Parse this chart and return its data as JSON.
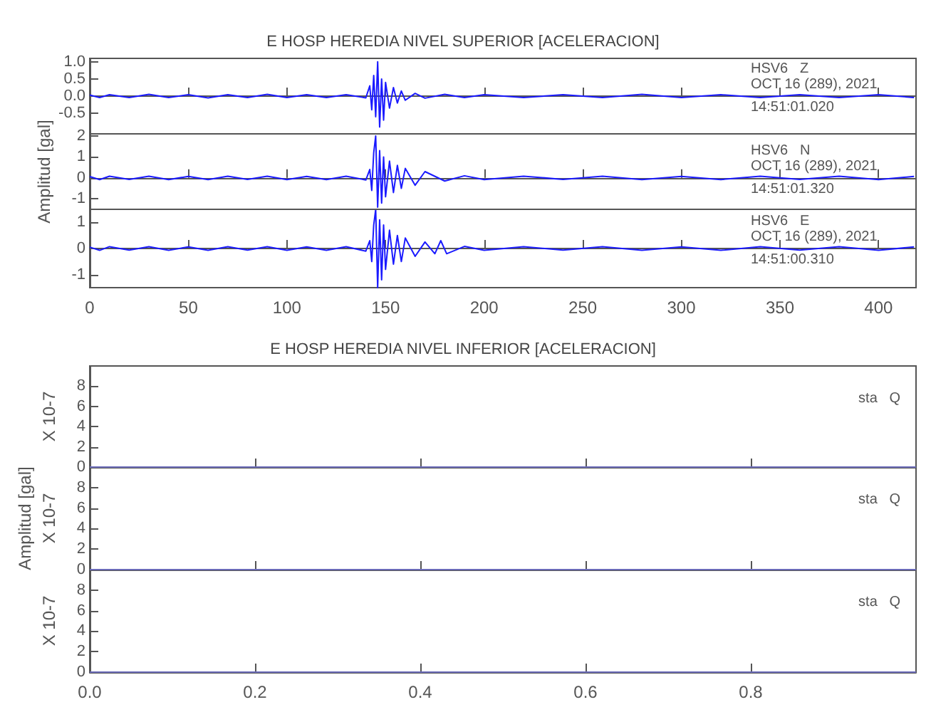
{
  "chart_data": [
    {
      "type": "line",
      "title": "E HOSP HEREDIA NIVEL SUPERIOR [ACELERACION]",
      "annotations": [
        "HSV6   Z",
        "OCT 16 (289), 2021",
        "14:51:01.020"
      ],
      "tick_labels": "y",
      "xlim": [
        0,
        419
      ],
      "xticks": [
        0,
        50,
        100,
        150,
        200,
        250,
        300,
        350,
        400
      ],
      "ylim": [
        -1.1,
        1.1
      ],
      "yticks": [
        {
          "value": 1,
          "label": "1.0"
        },
        {
          "value": 0.5,
          "label": "0.5"
        },
        {
          "value": 0,
          "label": "0.0"
        },
        {
          "value": -0.5,
          "label": "-0.5"
        }
      ],
      "x": [
        0,
        5,
        10,
        20,
        30,
        40,
        50,
        60,
        70,
        80,
        90,
        100,
        110,
        120,
        130,
        140,
        142,
        143,
        144,
        145,
        146,
        147,
        148,
        149,
        150,
        152,
        154,
        156,
        158,
        160,
        165,
        170,
        180,
        190,
        200,
        220,
        240,
        260,
        280,
        300,
        320,
        340,
        360,
        380,
        400,
        418
      ],
      "series": [
        {
          "color": "#1a1aff",
          "values": [
            0.03,
            -0.04,
            0.04,
            -0.04,
            0.05,
            -0.04,
            0.04,
            -0.05,
            0.04,
            -0.04,
            0.05,
            -0.04,
            0.04,
            -0.04,
            0.04,
            -0.05,
            0.3,
            -0.4,
            0.6,
            -0.6,
            1.0,
            -0.9,
            0.5,
            -0.7,
            0.4,
            -0.35,
            0.25,
            -0.2,
            0.15,
            -0.12,
            0.08,
            -0.06,
            0.05,
            -0.04,
            0.04,
            -0.04,
            0.04,
            -0.04,
            0.05,
            -0.04,
            0.04,
            -0.04,
            0.04,
            -0.04,
            0.04,
            -0.04
          ]
        }
      ]
    },
    {
      "type": "line",
      "ylabel": "Amplitud [gal]",
      "annotations": [
        "HSV6   N",
        "OCT 16 (289), 2021",
        "14:51:01.320"
      ],
      "tick_labels": "y",
      "xlim": [
        0,
        419
      ],
      "xticks": [
        0,
        50,
        100,
        150,
        200,
        250,
        300,
        350,
        400
      ],
      "ylim": [
        -1.5,
        2.1
      ],
      "yticks": [
        2,
        1,
        0,
        -1
      ],
      "x": [
        0,
        5,
        10,
        20,
        30,
        40,
        50,
        60,
        70,
        80,
        90,
        100,
        110,
        120,
        130,
        140,
        142,
        143,
        144,
        145,
        146,
        147,
        148,
        149,
        150,
        152,
        154,
        156,
        158,
        160,
        165,
        170,
        180,
        190,
        200,
        220,
        240,
        260,
        280,
        300,
        320,
        340,
        360,
        380,
        400,
        418
      ],
      "series": [
        {
          "color": "#1a1aff",
          "values": [
            0.06,
            -0.08,
            0.08,
            -0.07,
            0.08,
            -0.08,
            0.07,
            -0.08,
            0.08,
            -0.07,
            0.08,
            -0.08,
            0.07,
            -0.08,
            0.08,
            -0.1,
            0.4,
            -0.6,
            1.2,
            2.0,
            -1.4,
            1.3,
            -1.2,
            1.0,
            -0.9,
            0.8,
            -0.7,
            0.6,
            -0.5,
            0.45,
            -0.35,
            0.3,
            -0.15,
            0.1,
            -0.08,
            0.08,
            -0.07,
            0.08,
            -0.08,
            0.07,
            -0.08,
            0.08,
            -0.07,
            0.08,
            -0.08,
            0.07
          ]
        }
      ]
    },
    {
      "type": "line",
      "annotations": [
        "HSV6   E",
        "OCT 16 (289), 2021",
        "14:51:00.310"
      ],
      "xlim": [
        0,
        419
      ],
      "xticks": [
        0,
        50,
        100,
        150,
        200,
        250,
        300,
        350,
        400
      ],
      "ylim": [
        -1.5,
        1.5
      ],
      "yticks": [
        1,
        0,
        -1
      ],
      "x": [
        0,
        5,
        10,
        20,
        30,
        40,
        50,
        60,
        70,
        80,
        90,
        100,
        110,
        120,
        130,
        140,
        142,
        143,
        144,
        145,
        146,
        147,
        148,
        149,
        150,
        152,
        154,
        156,
        158,
        160,
        165,
        170,
        175,
        178,
        181,
        190,
        200,
        220,
        240,
        260,
        280,
        300,
        320,
        340,
        360,
        380,
        400,
        418
      ],
      "series": [
        {
          "color": "#1a1aff",
          "values": [
            0.05,
            -0.07,
            0.07,
            -0.06,
            0.07,
            -0.07,
            0.06,
            -0.07,
            0.07,
            -0.06,
            0.07,
            -0.07,
            0.06,
            -0.07,
            0.07,
            -0.1,
            0.3,
            -0.5,
            0.9,
            1.5,
            -1.5,
            1.1,
            -1.2,
            0.9,
            -0.8,
            0.7,
            -0.6,
            0.5,
            -0.5,
            0.4,
            -0.3,
            0.25,
            -0.2,
            0.3,
            -0.2,
            0.08,
            -0.07,
            0.07,
            -0.06,
            0.07,
            -0.07,
            0.06,
            -0.07,
            0.07,
            -0.06,
            0.07,
            -0.07,
            0.06
          ]
        }
      ]
    },
    {
      "type": "line",
      "title": "E HOSP HEREDIA NIVEL INFERIOR [ACELERACION]",
      "ylabel": "X 10-7",
      "annotations": [
        "sta   Q"
      ],
      "tick_labels": "y",
      "xlim": [
        0,
        1
      ],
      "xticks": [
        0.2,
        0.4,
        0.6,
        0.8
      ],
      "ylim": [
        0,
        10
      ],
      "yticks": [
        0,
        2,
        4,
        6,
        8
      ],
      "x": [
        0,
        1
      ],
      "series": [
        {
          "color": "#6b6bb8",
          "values": [
            0,
            0
          ]
        }
      ]
    },
    {
      "type": "line",
      "ylabel": "Amplitud [gal]\nX 10-7",
      "annotations": [
        "sta   Q"
      ],
      "tick_labels": "y",
      "xlim": [
        0,
        1
      ],
      "xticks": [
        0.2,
        0.4,
        0.6,
        0.8
      ],
      "ylim": [
        0,
        10
      ],
      "yticks": [
        0,
        2,
        4,
        6,
        8
      ],
      "x": [
        0,
        1
      ],
      "series": [
        {
          "color": "#6b6bb8",
          "values": [
            0,
            0
          ]
        }
      ]
    },
    {
      "type": "line",
      "ylabel": "X 10-7",
      "annotations": [
        "sta   Q"
      ],
      "xlim": [
        0,
        1
      ],
      "xticks": [
        {
          "value": 0,
          "label": "0.0"
        },
        0.2,
        0.4,
        0.6,
        0.8
      ],
      "ylim": [
        0,
        10
      ],
      "yticks": [
        0,
        2,
        4,
        6,
        8
      ],
      "x": [
        0,
        1
      ],
      "series": [
        {
          "color": "#6b6bb8",
          "values": [
            0,
            0
          ]
        }
      ]
    }
  ]
}
